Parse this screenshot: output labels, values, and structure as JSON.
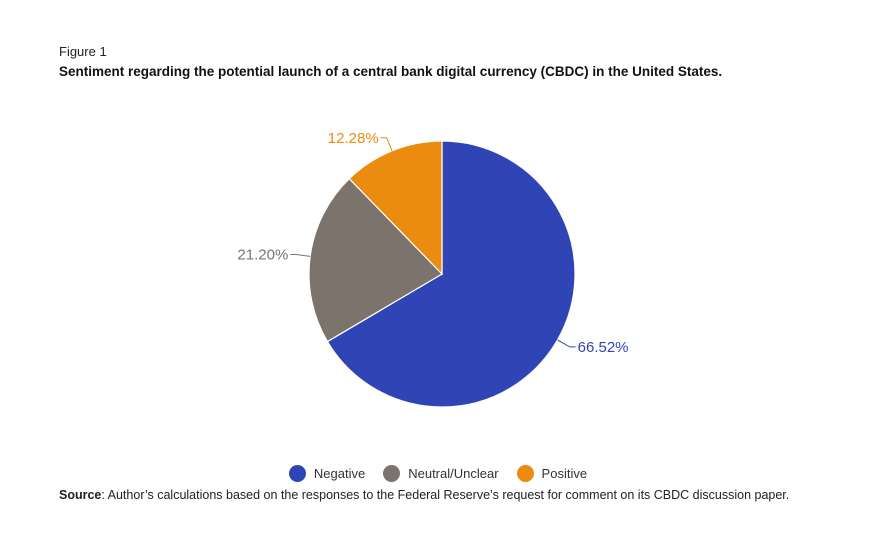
{
  "figure_label": "Figure 1",
  "chart_data": {
    "type": "pie",
    "title": "Sentiment regarding the potential launch of a central bank digital currency (CBDC) in the United States.",
    "slices": [
      {
        "name": "Negative",
        "value": 66.52,
        "label": "66.52%",
        "color": "#3045b5"
      },
      {
        "name": "Neutral/Unclear",
        "value": 21.2,
        "label": "21.20%",
        "color": "#7b736c"
      },
      {
        "name": "Positive",
        "value": 12.28,
        "label": "12.28%",
        "color": "#eb8b0f"
      }
    ],
    "legend_position": "bottom-center",
    "start_angle": "12 o'clock",
    "direction": "clockwise"
  },
  "source": {
    "label": "Source",
    "text": ": Author’s calculations based on the responses to the Federal Reserve’s request for comment on its CBDC discussion paper."
  }
}
